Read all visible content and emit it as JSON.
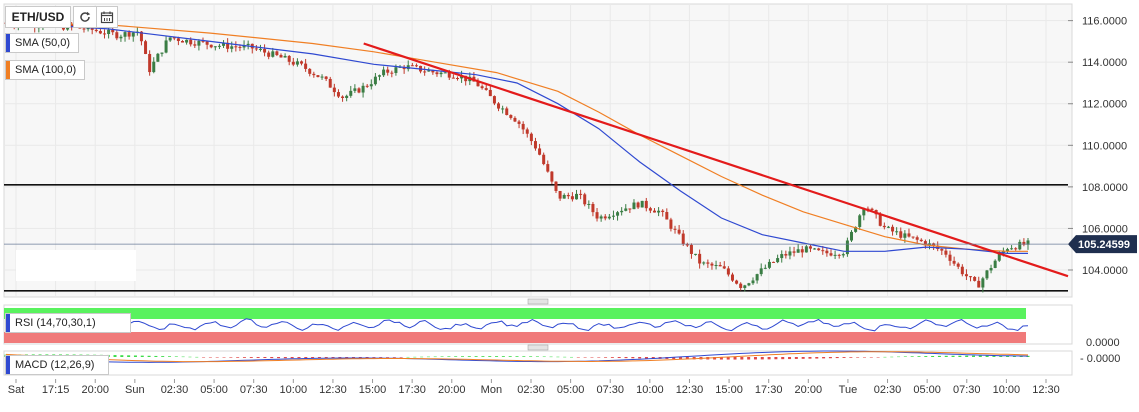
{
  "toolbar": {
    "symbol": "ETH/USD",
    "refresh_icon": "refresh-icon",
    "calendar_icon": "calendar-icon"
  },
  "indicators": {
    "sma50": {
      "label": "SMA (50,0)",
      "color": "#2f49d1"
    },
    "sma100": {
      "label": "SMA (100,0)",
      "color": "#f07f24"
    },
    "rsi": {
      "label": "RSI (14,70,30,1)",
      "color": "#2f49d1"
    },
    "macd": {
      "label": "MACD (12,26,9)"
    }
  },
  "colors": {
    "up": "#3a7d44",
    "down": "#c0392b",
    "trendline": "#e31b1b",
    "rsi_overbought": "#59f25e",
    "rsi_oversold": "#f07a7a"
  },
  "chart_data": {
    "type": "candlestick",
    "ylim": [
      102.7,
      116.8
    ],
    "y_ticks": [
      "116.0000",
      "114.0000",
      "112.0000",
      "110.0000",
      "108.0000",
      "106.0000",
      "104.0000"
    ],
    "y_tick_values": [
      116,
      114,
      112,
      110,
      108,
      106,
      104
    ],
    "x_labels": [
      "Sat",
      "17:15",
      "20:00",
      "Sun",
      "02:30",
      "05:00",
      "07:30",
      "10:00",
      "12:30",
      "15:00",
      "17:30",
      "20:00",
      "Mon",
      "02:30",
      "05:00",
      "07:30",
      "10:00",
      "12:30",
      "15:00",
      "17:30",
      "20:00",
      "Tue",
      "02:30",
      "05:00",
      "07:30",
      "10:00",
      "12:30"
    ],
    "current_price": "105.24599",
    "current_price_value": 105.246,
    "horizontal_levels": [
      108.1,
      103.0
    ],
    "trendline": {
      "start": {
        "t": 0.35,
        "price": 114.9
      },
      "end": {
        "t": 1.0,
        "price": 103.7
      }
    },
    "price_path": [
      [
        0.0,
        115.9
      ],
      [
        0.04,
        115.8
      ],
      [
        0.08,
        115.6
      ],
      [
        0.11,
        115.3
      ],
      [
        0.13,
        115.5
      ],
      [
        0.14,
        113.6
      ],
      [
        0.16,
        115.2
      ],
      [
        0.18,
        115.0
      ],
      [
        0.21,
        114.8
      ],
      [
        0.24,
        114.7
      ],
      [
        0.27,
        114.2
      ],
      [
        0.29,
        113.8
      ],
      [
        0.31,
        113.2
      ],
      [
        0.33,
        112.3
      ],
      [
        0.35,
        112.8
      ],
      [
        0.37,
        113.5
      ],
      [
        0.39,
        113.8
      ],
      [
        0.42,
        113.5
      ],
      [
        0.44,
        113.4
      ],
      [
        0.46,
        113.0
      ],
      [
        0.48,
        112.0
      ],
      [
        0.5,
        111.2
      ],
      [
        0.52,
        109.8
      ],
      [
        0.54,
        107.5
      ],
      [
        0.56,
        107.6
      ],
      [
        0.58,
        106.5
      ],
      [
        0.6,
        106.9
      ],
      [
        0.62,
        107.2
      ],
      [
        0.64,
        106.8
      ],
      [
        0.66,
        105.5
      ],
      [
        0.68,
        104.3
      ],
      [
        0.7,
        104.1
      ],
      [
        0.72,
        103.2
      ],
      [
        0.74,
        104.0
      ],
      [
        0.76,
        104.7
      ],
      [
        0.78,
        105.0
      ],
      [
        0.8,
        104.8
      ],
      [
        0.82,
        104.9
      ],
      [
        0.84,
        107.2
      ],
      [
        0.86,
        106.0
      ],
      [
        0.88,
        105.6
      ],
      [
        0.9,
        105.3
      ],
      [
        0.92,
        104.8
      ],
      [
        0.93,
        104.2
      ],
      [
        0.95,
        103.2
      ],
      [
        0.97,
        104.6
      ],
      [
        0.98,
        105.1
      ],
      [
        1.0,
        105.25
      ]
    ],
    "sma50_path": [
      [
        0.0,
        115.9
      ],
      [
        0.1,
        115.6
      ],
      [
        0.2,
        115.0
      ],
      [
        0.3,
        114.4
      ],
      [
        0.36,
        113.9
      ],
      [
        0.42,
        113.6
      ],
      [
        0.46,
        113.4
      ],
      [
        0.5,
        113.0
      ],
      [
        0.54,
        112.0
      ],
      [
        0.58,
        110.8
      ],
      [
        0.62,
        109.2
      ],
      [
        0.66,
        107.8
      ],
      [
        0.7,
        106.5
      ],
      [
        0.74,
        105.7
      ],
      [
        0.78,
        105.3
      ],
      [
        0.82,
        104.9
      ],
      [
        0.86,
        104.9
      ],
      [
        0.9,
        105.1
      ],
      [
        0.94,
        105.0
      ],
      [
        0.98,
        104.8
      ],
      [
        1.0,
        104.8
      ]
    ],
    "sma100_path": [
      [
        0.0,
        115.9
      ],
      [
        0.1,
        115.8
      ],
      [
        0.2,
        115.4
      ],
      [
        0.3,
        114.9
      ],
      [
        0.36,
        114.5
      ],
      [
        0.42,
        114.0
      ],
      [
        0.48,
        113.5
      ],
      [
        0.54,
        112.6
      ],
      [
        0.58,
        111.6
      ],
      [
        0.62,
        110.5
      ],
      [
        0.66,
        109.5
      ],
      [
        0.7,
        108.5
      ],
      [
        0.74,
        107.6
      ],
      [
        0.78,
        106.8
      ],
      [
        0.82,
        106.2
      ],
      [
        0.86,
        105.6
      ],
      [
        0.9,
        105.2
      ],
      [
        0.94,
        105.0
      ],
      [
        0.98,
        104.9
      ],
      [
        1.0,
        104.9
      ]
    ],
    "rsi_value_label": "",
    "macd_zero_label": "0.0000"
  }
}
